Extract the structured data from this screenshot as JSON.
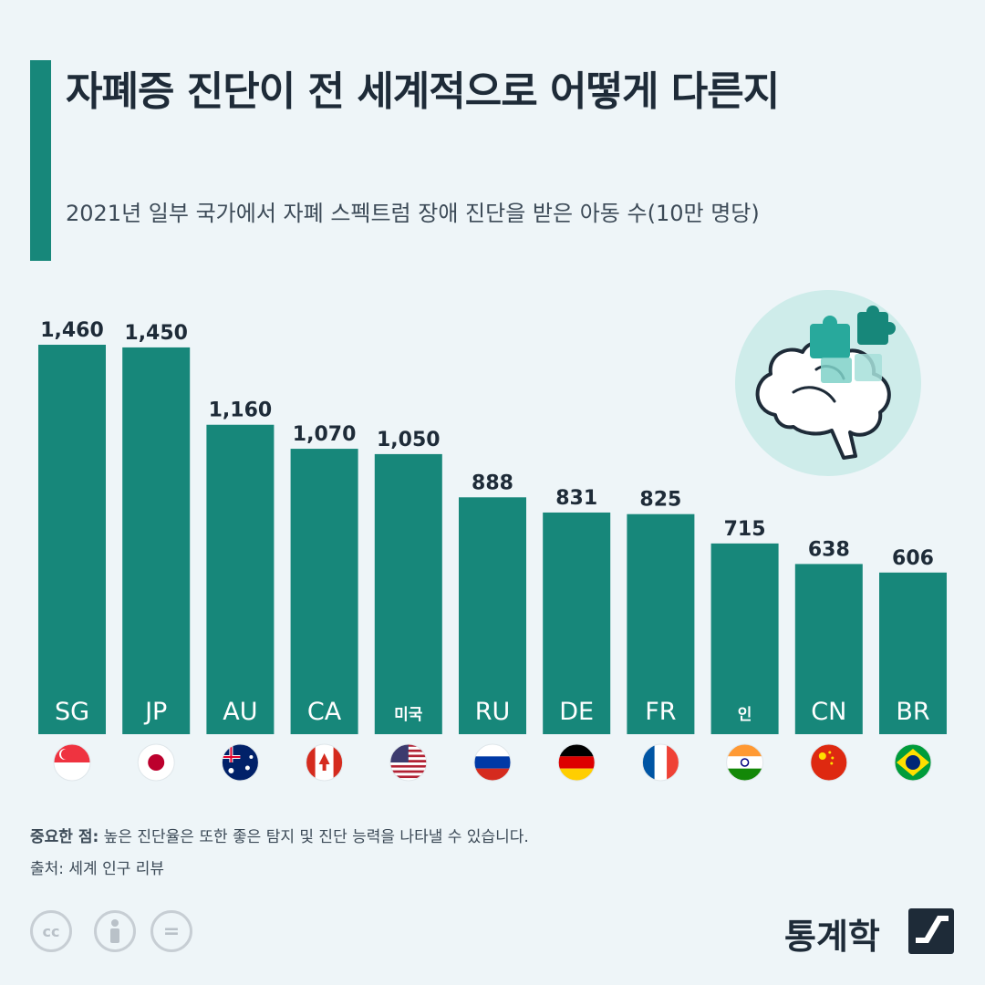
{
  "header": {
    "title": "자폐증 진단이 전 세계적으로 어떻게 다른지",
    "subtitle": "2021년 일부 국가에서 자폐 스펙트럼 장애 진단을 받은 아동 수(10만 명당)"
  },
  "chart_data": {
    "type": "bar",
    "categories": [
      "SG",
      "JP",
      "AU",
      "CA",
      "미국",
      "RU",
      "DE",
      "FR",
      "인",
      "CN",
      "BR"
    ],
    "values": [
      1460,
      1450,
      1160,
      1070,
      1050,
      888,
      831,
      825,
      715,
      638,
      606
    ],
    "value_labels": [
      "1,460",
      "1,450",
      "1,160",
      "1,070",
      "1,050",
      "888",
      "831",
      "825",
      "715",
      "638",
      "606"
    ],
    "flags": [
      "singapore-flag",
      "japan-flag",
      "australia-flag",
      "canada-flag",
      "usa-flag",
      "russia-flag",
      "germany-flag",
      "france-flag",
      "india-flag",
      "china-flag",
      "brazil-flag"
    ],
    "bar_color": "#17877a"
  },
  "footer": {
    "note_label": "중요한 점:",
    "note_text": " 높은 진단율은 또한 좋은 탐지 및 진단 능력을 나타낼 수 있습니다.",
    "source": "출처: 세계 인구 리뷰",
    "cc_icons": [
      "cc",
      "person",
      "="
    ]
  },
  "logo": {
    "text": "통계학"
  },
  "colors": {
    "accent": "#17877a",
    "background": "#eef5f8",
    "text_dark": "#1e2b38"
  }
}
